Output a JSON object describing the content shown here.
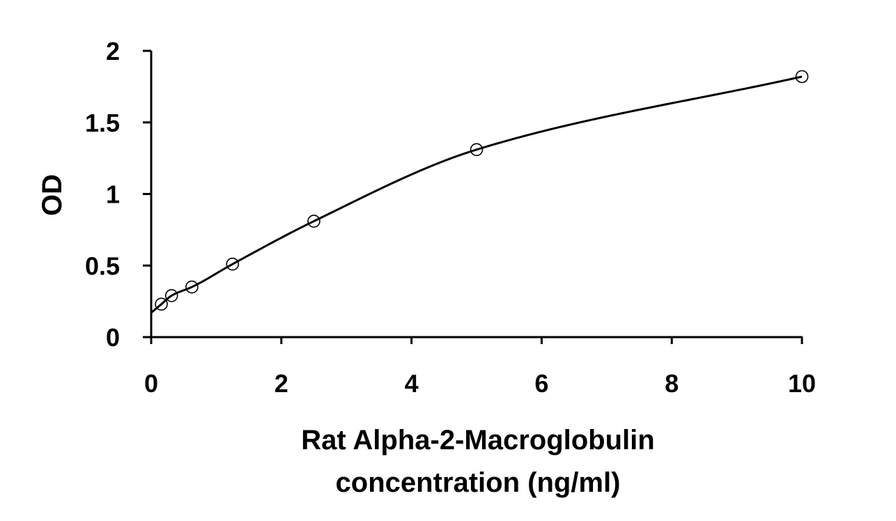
{
  "chart_data": {
    "type": "scatter",
    "title": "",
    "xlabel_lines": [
      "Rat Alpha-2-Macroglobulin",
      "concentration (ng/ml)"
    ],
    "ylabel": "OD",
    "xlim": [
      0,
      10
    ],
    "ylim": [
      0,
      2
    ],
    "x_ticks": [
      0,
      2,
      4,
      6,
      8,
      10
    ],
    "y_ticks": [
      0,
      0.5,
      1,
      1.5,
      2
    ],
    "x_tick_labels": [
      "0",
      "2",
      "4",
      "6",
      "8",
      "10"
    ],
    "y_tick_labels": [
      "0",
      "0.5",
      "1",
      "1.5",
      "2"
    ],
    "grid": false,
    "legend": "none",
    "series": [
      {
        "x": [
          0.156,
          0.313,
          0.625,
          1.25,
          2.5,
          5,
          10
        ],
        "y": [
          0.23,
          0.29,
          0.35,
          0.51,
          0.81,
          1.31,
          1.82
        ],
        "marker": "open-circle",
        "trendline": "smooth-curve",
        "color": "#000000"
      }
    ]
  }
}
